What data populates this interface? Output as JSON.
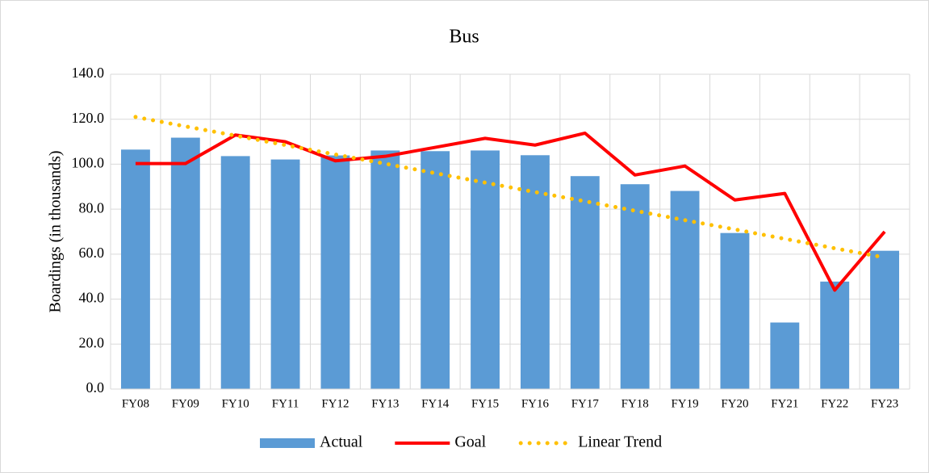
{
  "chart_data": {
    "type": "bar_line",
    "title": "Bus",
    "y_label": "Boardings (in thousands)",
    "categories": [
      "FY08",
      "FY09",
      "FY10",
      "FY11",
      "FY12",
      "FY13",
      "FY14",
      "FY15",
      "FY16",
      "FY17",
      "FY18",
      "FY19",
      "FY20",
      "FY21",
      "FY22",
      "FY23"
    ],
    "series": [
      {
        "name": "Actual",
        "kind": "bar",
        "color": "#5b9bd5",
        "values": [
          106.5,
          111.8,
          103.6,
          102.1,
          103.9,
          106.1,
          105.8,
          106.1,
          104.0,
          94.7,
          91.1,
          88.1,
          69.4,
          29.6,
          47.8,
          61.5
        ]
      },
      {
        "name": "Goal",
        "kind": "line",
        "color": "#ff0000",
        "values": [
          100.3,
          100.3,
          113.0,
          110.0,
          101.5,
          103.5,
          107.5,
          111.5,
          108.5,
          113.8,
          95.2,
          99.2,
          84.1,
          87.0,
          44.0,
          70.0
        ]
      },
      {
        "name": "Linear Trend",
        "kind": "dotted",
        "color": "#ffc000",
        "values": [
          121.0,
          116.8,
          112.7,
          108.5,
          104.3,
          100.2,
          96.0,
          91.8,
          87.6,
          83.5,
          79.3,
          75.1,
          71.0,
          66.8,
          62.6,
          58.5
        ]
      }
    ],
    "ylim": [
      0,
      140
    ],
    "yticks": [
      {
        "value": 0,
        "label": "0.0"
      },
      {
        "value": 20,
        "label": "20.0"
      },
      {
        "value": 40,
        "label": "40.0"
      },
      {
        "value": 60,
        "label": "60.0"
      },
      {
        "value": 80,
        "label": "80.0"
      },
      {
        "value": 100,
        "label": "100.0"
      },
      {
        "value": 120,
        "label": "120.0"
      },
      {
        "value": 140,
        "label": "140.0"
      }
    ],
    "grid": true,
    "legend": "bottom"
  }
}
